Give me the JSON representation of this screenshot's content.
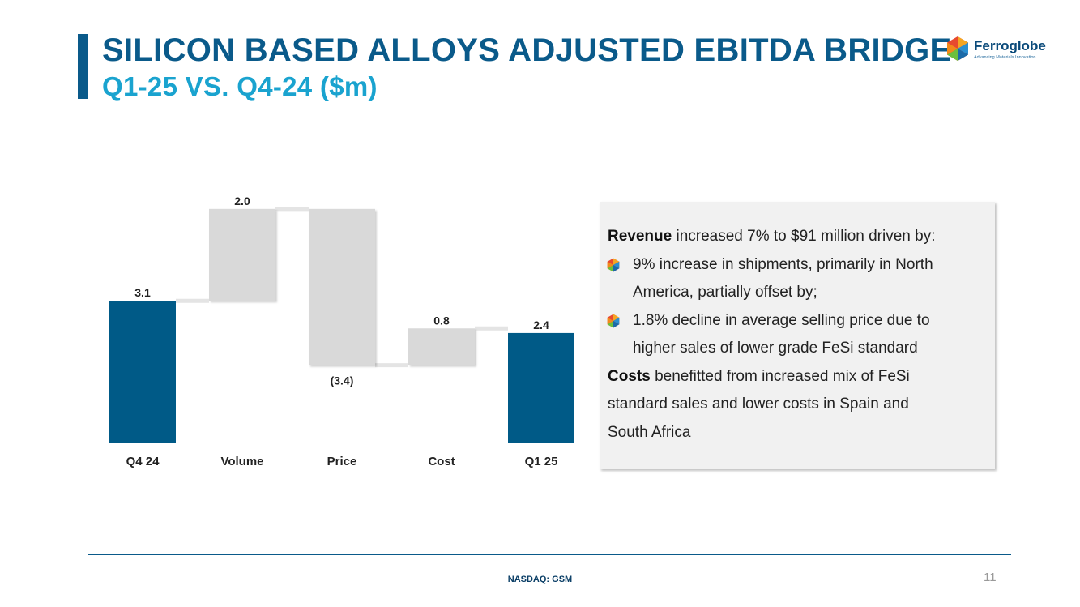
{
  "slide": {
    "title": "SILICON BASED ALLOYS ADJUSTED EBITDA BRIDGE",
    "subtitle": "Q1-25 VS. Q4-24 ($m)",
    "page_number": "11",
    "footer": "NASDAQ: GSM"
  },
  "logo": {
    "name": "Ferroglobe",
    "tagline": "Advancing Materials Innovation"
  },
  "chart_data": {
    "type": "bar",
    "subtype": "waterfall",
    "categories": [
      "Q4 24",
      "Volume",
      "Price",
      "Cost",
      "Q1 25"
    ],
    "values": [
      3.1,
      2.0,
      -3.4,
      0.8,
      2.4
    ],
    "data_labels": [
      "3.1",
      "2.0",
      "(3.4)",
      "0.8",
      "2.4"
    ],
    "bar_kinds": [
      "total",
      "delta",
      "delta",
      "delta",
      "total"
    ],
    "colors": {
      "total": "#005a87",
      "delta": "#d9d9d9"
    },
    "ylim": [
      0,
      5.1
    ],
    "grid": false,
    "legend": "none"
  },
  "commentary": {
    "revenue_heading": "Revenue",
    "revenue_text": "increased 7% to $91 million driven by:",
    "bullet1_line1": "9% increase in shipments, primarily in North",
    "bullet1_line2": "America, partially offset by;",
    "bullet2_line1": "1.8% decline in average selling price due to",
    "bullet2_line2": "higher sales of lower grade FeSi standard",
    "costs_heading": "Costs",
    "costs_line1": "benefitted from increased mix of FeSi",
    "costs_line2": "standard sales and lower costs in Spain and",
    "costs_line3": "South Africa"
  }
}
